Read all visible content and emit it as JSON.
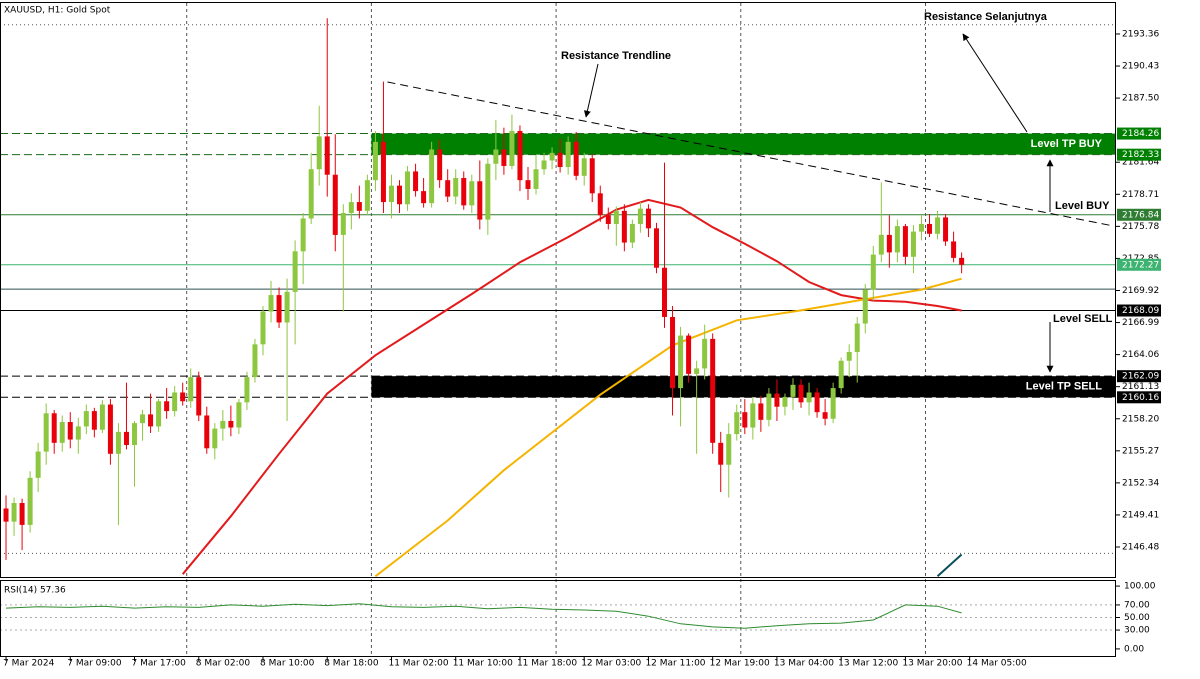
{
  "chart_data": [
    {
      "type": "candlestick",
      "symbol": "XAUUSD, H1:  Gold Spot",
      "color_up": "#8dc63f",
      "color_down": "#e8000b",
      "candles": [
        [
          2150.0,
          2151.2,
          2145.3,
          2148.8
        ],
        [
          2148.8,
          2151.0,
          2147.5,
          2150.5
        ],
        [
          2150.5,
          2150.9,
          2146.2,
          2148.5
        ],
        [
          2148.5,
          2153.4,
          2147.8,
          2152.8
        ],
        [
          2152.8,
          2156.0,
          2151.5,
          2155.2
        ],
        [
          2155.2,
          2159.6,
          2154.0,
          2158.7
        ],
        [
          2158.7,
          2159.0,
          2155.0,
          2156.0
        ],
        [
          2156.0,
          2158.5,
          2155.2,
          2157.9
        ],
        [
          2157.9,
          2158.8,
          2155.5,
          2156.3
        ],
        [
          2156.3,
          2158.3,
          2155.0,
          2157.5
        ],
        [
          2157.5,
          2159.5,
          2156.8,
          2158.9
        ],
        [
          2158.9,
          2159.2,
          2156.5,
          2157.2
        ],
        [
          2157.2,
          2159.9,
          2156.9,
          2159.5
        ],
        [
          2159.5,
          2160.0,
          2154.0,
          2155.0
        ],
        [
          2155.0,
          2157.8,
          2148.5,
          2157.0
        ],
        [
          2157.0,
          2161.5,
          2155.4,
          2155.8
        ],
        [
          2155.8,
          2158.0,
          2152.0,
          2157.8
        ],
        [
          2157.8,
          2159.0,
          2156.2,
          2158.6
        ],
        [
          2158.6,
          2160.5,
          2156.9,
          2157.5
        ],
        [
          2157.5,
          2160.0,
          2157.0,
          2159.8
        ],
        [
          2159.8,
          2161.0,
          2158.2,
          2158.9
        ],
        [
          2158.9,
          2161.2,
          2158.4,
          2160.6
        ],
        [
          2160.6,
          2161.5,
          2159.4,
          2159.8
        ],
        [
          2159.8,
          2162.8,
          2159.2,
          2162.0
        ],
        [
          2162.0,
          2162.5,
          2158.0,
          2158.5
        ],
        [
          2158.5,
          2159.3,
          2155.0,
          2155.5
        ],
        [
          2155.5,
          2157.8,
          2154.5,
          2157.3
        ],
        [
          2157.3,
          2159.0,
          2156.2,
          2158.0
        ],
        [
          2158.0,
          2159.4,
          2156.6,
          2157.4
        ],
        [
          2157.4,
          2160.0,
          2156.8,
          2159.7
        ],
        [
          2159.7,
          2162.5,
          2159.0,
          2162.0
        ],
        [
          2162.0,
          2165.5,
          2161.5,
          2165.0
        ],
        [
          2165.0,
          2168.5,
          2164.0,
          2168.0
        ],
        [
          2168.0,
          2170.8,
          2167.0,
          2169.5
        ],
        [
          2169.5,
          2170.2,
          2166.5,
          2167.0
        ],
        [
          2167.0,
          2171.0,
          2158.0,
          2169.8
        ],
        [
          2169.8,
          2174.5,
          2165.0,
          2173.5
        ],
        [
          2173.5,
          2177.0,
          2170.5,
          2176.5
        ],
        [
          2176.5,
          2182.5,
          2176.0,
          2181.0
        ],
        [
          2181.0,
          2186.8,
          2179.5,
          2184.0
        ],
        [
          2184.0,
          2194.8,
          2178.5,
          2180.5
        ],
        [
          2180.5,
          2184.2,
          2173.5,
          2175.0
        ],
        [
          2175.0,
          2177.8,
          2168.0,
          2177.0
        ],
        [
          2177.0,
          2178.8,
          2175.5,
          2178.0
        ],
        [
          2178.0,
          2179.5,
          2176.5,
          2177.2
        ],
        [
          2177.2,
          2180.5,
          2176.8,
          2180.0
        ],
        [
          2180.0,
          2184.5,
          2179.0,
          2183.5
        ],
        [
          2183.5,
          2189.0,
          2177.0,
          2178.0
        ],
        [
          2178.0,
          2180.5,
          2176.5,
          2179.5
        ],
        [
          2179.5,
          2180.0,
          2177.0,
          2177.8
        ],
        [
          2177.8,
          2181.3,
          2177.2,
          2180.8
        ],
        [
          2180.8,
          2181.5,
          2178.5,
          2179.0
        ],
        [
          2179.0,
          2180.2,
          2177.5,
          2177.9
        ],
        [
          2177.9,
          2183.5,
          2177.5,
          2182.8
        ],
        [
          2182.8,
          2183.7,
          2179.3,
          2180.0
        ],
        [
          2180.0,
          2181.0,
          2178.0,
          2178.5
        ],
        [
          2178.5,
          2181.0,
          2177.8,
          2180.2
        ],
        [
          2180.2,
          2180.8,
          2177.3,
          2177.7
        ],
        [
          2177.7,
          2180.5,
          2177.0,
          2179.9
        ],
        [
          2179.9,
          2181.8,
          2175.5,
          2176.4
        ],
        [
          2176.4,
          2182.0,
          2175.0,
          2181.5
        ],
        [
          2181.5,
          2185.5,
          2180.0,
          2182.8
        ],
        [
          2182.8,
          2184.8,
          2180.5,
          2181.3
        ],
        [
          2181.3,
          2186.0,
          2181.0,
          2184.5
        ],
        [
          2184.5,
          2185.0,
          2179.0,
          2180.0
        ],
        [
          2180.0,
          2181.2,
          2178.2,
          2179.2
        ],
        [
          2179.2,
          2182.3,
          2178.7,
          2181.0
        ],
        [
          2181.0,
          2182.5,
          2180.5,
          2181.8
        ],
        [
          2181.8,
          2183.0,
          2181.0,
          2182.5
        ],
        [
          2182.5,
          2183.8,
          2180.7,
          2181.2
        ],
        [
          2181.2,
          2184.0,
          2180.5,
          2183.5
        ],
        [
          2183.5,
          2184.4,
          2180.0,
          2180.4
        ],
        [
          2180.4,
          2182.5,
          2179.5,
          2182.0
        ],
        [
          2182.0,
          2182.4,
          2178.0,
          2178.8
        ],
        [
          2178.8,
          2179.5,
          2176.2,
          2176.8
        ],
        [
          2176.8,
          2177.5,
          2175.5,
          2176.0
        ],
        [
          2176.0,
          2177.6,
          2174.0,
          2177.2
        ],
        [
          2177.2,
          2177.8,
          2173.5,
          2174.3
        ],
        [
          2174.3,
          2176.4,
          2173.8,
          2176.0
        ],
        [
          2176.0,
          2178.0,
          2175.2,
          2177.4
        ],
        [
          2177.4,
          2177.8,
          2174.8,
          2175.6
        ],
        [
          2175.6,
          2176.1,
          2171.5,
          2172.0
        ],
        [
          2172.0,
          2181.6,
          2166.5,
          2167.5
        ],
        [
          2167.5,
          2168.5,
          2158.5,
          2161.0
        ],
        [
          2161.0,
          2166.6,
          2157.5,
          2165.8
        ],
        [
          2165.8,
          2166.0,
          2161.5,
          2162.3
        ],
        [
          2162.3,
          2163.5,
          2155.0,
          2162.8
        ],
        [
          2162.8,
          2166.8,
          2161.8,
          2165.5
        ],
        [
          2165.5,
          2166.0,
          2155.0,
          2156.0
        ],
        [
          2156.0,
          2157.0,
          2151.5,
          2154.0
        ],
        [
          2154.0,
          2157.8,
          2151.0,
          2156.8
        ],
        [
          2156.8,
          2159.5,
          2156.2,
          2158.8
        ],
        [
          2158.8,
          2160.0,
          2156.8,
          2157.4
        ],
        [
          2157.4,
          2160.2,
          2156.3,
          2159.6
        ],
        [
          2159.6,
          2160.3,
          2157.0,
          2158.1
        ],
        [
          2158.1,
          2161.0,
          2157.5,
          2160.5
        ],
        [
          2160.5,
          2161.8,
          2158.0,
          2159.3
        ],
        [
          2159.3,
          2160.5,
          2158.5,
          2160.2
        ],
        [
          2160.2,
          2161.9,
          2159.0,
          2161.3
        ],
        [
          2161.3,
          2161.8,
          2159.2,
          2159.7
        ],
        [
          2159.7,
          2161.5,
          2158.5,
          2160.6
        ],
        [
          2160.6,
          2161.0,
          2158.3,
          2158.8
        ],
        [
          2158.8,
          2160.0,
          2157.6,
          2158.2
        ],
        [
          2158.2,
          2161.5,
          2157.8,
          2161.0
        ],
        [
          2161.0,
          2163.8,
          2160.5,
          2163.5
        ],
        [
          2163.5,
          2165.0,
          2162.0,
          2164.3
        ],
        [
          2164.3,
          2167.5,
          2161.5,
          2166.9
        ],
        [
          2166.9,
          2170.5,
          2166.0,
          2170.0
        ],
        [
          2170.0,
          2174.0,
          2169.0,
          2173.2
        ],
        [
          2173.2,
          2179.8,
          2172.5,
          2175.0
        ],
        [
          2175.0,
          2176.8,
          2172.0,
          2173.4
        ],
        [
          2173.4,
          2176.4,
          2172.5,
          2175.8
        ],
        [
          2175.8,
          2176.0,
          2172.3,
          2173.0
        ],
        [
          2173.0,
          2175.9,
          2171.5,
          2175.3
        ],
        [
          2175.3,
          2176.8,
          2174.5,
          2176.0
        ],
        [
          2176.0,
          2176.9,
          2174.8,
          2175.1
        ],
        [
          2175.1,
          2177.2,
          2174.6,
          2176.6
        ],
        [
          2176.6,
          2176.9,
          2174.0,
          2174.4
        ],
        [
          2174.4,
          2175.3,
          2172.5,
          2172.9
        ],
        [
          2172.9,
          2173.4,
          2171.5,
          2172.27
        ]
      ],
      "series": [
        {
          "color": "#e31a1c",
          "x": [
            22,
            28,
            34,
            40,
            46,
            52,
            58,
            64,
            70,
            76,
            80,
            84,
            88,
            92,
            96,
            100,
            104,
            108,
            112,
            116,
            119
          ],
          "values": [
            2144.0,
            2149.3,
            2155.0,
            2160.5,
            2164.0,
            2166.8,
            2169.6,
            2172.5,
            2174.8,
            2177.3,
            2178.2,
            2177.5,
            2175.7,
            2174.2,
            2172.6,
            2170.7,
            2169.5,
            2169.0,
            2168.9,
            2168.5,
            2168.09
          ]
        },
        {
          "color": "#f5b400",
          "x": [
            46,
            55,
            62,
            74,
            83,
            91,
            99,
            106,
            114,
            119
          ],
          "values": [
            2143.8,
            2148.9,
            2153.5,
            2160.4,
            2164.9,
            2167.2,
            2168.1,
            2169.0,
            2170.0,
            2171.0
          ]
        },
        {
          "color": "#0b4f5c",
          "x": [
            116,
            119
          ],
          "values": [
            2143.8,
            2145.8
          ]
        }
      ],
      "xlim": [
        -0.75,
        138.1
      ],
      "ylim": [
        2143.74,
        2196.19
      ],
      "yticks": [
        2193.36,
        2190.43,
        {
          "value": 2187.5,
          "label": "2187.50"
        },
        2181.64,
        2178.71,
        2175.78,
        2172.85,
        2169.92,
        2166.99,
        2164.06,
        2161.13,
        {
          "value": 2158.2,
          "label": "2158.20"
        },
        2155.27,
        2152.34,
        2149.41,
        2146.48
      ],
      "xticks": [
        {
          "value": 0,
          "label": "7 Mar 2024"
        },
        {
          "value": 8,
          "label": "7 Mar 09:00"
        },
        {
          "value": 16,
          "label": "7 Mar 17:00"
        },
        {
          "value": 24,
          "label": "8 Mar 02:00"
        },
        {
          "value": 32,
          "label": "8 Mar 10:00"
        },
        {
          "value": 40,
          "label": "8 Mar 18:00"
        },
        {
          "value": 48,
          "label": "11 Mar 02:00"
        },
        {
          "value": 56,
          "label": "11 Mar 10:00"
        },
        {
          "value": 64,
          "label": "11 Mar 18:00"
        },
        {
          "value": 72,
          "label": "12 Mar 03:00"
        },
        {
          "value": 80,
          "label": "12 Mar 11:00"
        },
        {
          "value": 88,
          "label": "12 Mar 19:00"
        },
        {
          "value": 96,
          "label": "13 Mar 04:00"
        },
        {
          "value": 104,
          "label": "13 Mar 12:00"
        },
        {
          "value": 112,
          "label": "13 Mar 20:00"
        },
        {
          "value": 120,
          "label": "14 Mar 05:00"
        }
      ],
      "xgrid": [
        22.5,
        45.5,
        68.5,
        91.5,
        114.5
      ],
      "levels": [
        {
          "value": 2194.2,
          "color": "#555555",
          "style": "dotted"
        },
        {
          "value": 2184.26,
          "color": "#1a6b1a",
          "style": "dashed"
        },
        {
          "value": 2182.33,
          "color": "#1a6b1a",
          "style": "dashed"
        },
        {
          "value": 2176.84,
          "color": "#2e7d32",
          "style": "solid"
        },
        {
          "value": 2172.27,
          "color": "#3cb371",
          "style": "solid"
        },
        {
          "value": 2170.05,
          "color": "#2f4f4f",
          "style": "solid"
        },
        {
          "value": 2168.09,
          "color": "#000000",
          "style": "solid"
        },
        {
          "value": 2162.09,
          "color": "#000000",
          "style": "dashed"
        },
        {
          "value": 2160.16,
          "color": "#000000",
          "style": "dashed"
        },
        {
          "value": 2145.9,
          "color": "#555555",
          "style": "dotted"
        }
      ],
      "zones": [
        {
          "label": "Level TP BUY",
          "from": 2182.33,
          "to": 2184.26,
          "color": "#008000",
          "x_start": 45.5
        },
        {
          "label": "Level TP SELL",
          "from": 2160.16,
          "to": 2162.09,
          "color": "#000000",
          "x_start": 45.5
        }
      ],
      "trendline": {
        "x": [
          47.5,
          138.0
        ],
        "values": [
          2188.97,
          2175.8
        ]
      },
      "price_tags": [
        {
          "value": 2184.26,
          "color": "#008000"
        },
        {
          "value": 2182.33,
          "color": "#008000"
        },
        {
          "value": 2176.84,
          "color": "#2e7d32"
        },
        {
          "value": 2172.27,
          "color": "#3cb371"
        },
        {
          "value": 2168.09,
          "color": "#000000"
        },
        {
          "value": 2162.09,
          "color": "#000000"
        },
        {
          "value": 2160.16,
          "color": "#000000"
        }
      ],
      "annotations": [
        "Resistance Trendline",
        "Resistance Selanjutnya",
        "Level BUY",
        "Level SELL"
      ]
    },
    {
      "type": "line",
      "title": "RSI(14) 57.36",
      "color": "#2e8b2e",
      "x": [
        0,
        4,
        8,
        12,
        16,
        20,
        24,
        28,
        32,
        36,
        40,
        44,
        48,
        52,
        56,
        60,
        64,
        68,
        72,
        76,
        80,
        84,
        88,
        92,
        96,
        100,
        104,
        108,
        112,
        116,
        119
      ],
      "values": [
        65,
        67,
        66,
        68,
        65,
        67,
        66,
        70,
        68,
        71,
        69,
        72,
        67,
        66,
        68,
        64,
        66,
        63,
        62,
        60,
        52,
        40,
        35,
        33,
        37,
        40,
        41,
        46,
        70,
        68,
        57.36
      ],
      "ylim": [
        -11.3,
        108.1
      ],
      "yticks": [
        {
          "value": 100,
          "label": "100.00"
        },
        {
          "value": 70,
          "label": "70.00"
        },
        {
          "value": 50,
          "label": "50.00"
        },
        {
          "value": 30,
          "label": "30.00"
        },
        {
          "value": 0,
          "label": "0.00"
        }
      ],
      "grid_lines": [
        70,
        50,
        30
      ]
    }
  ]
}
